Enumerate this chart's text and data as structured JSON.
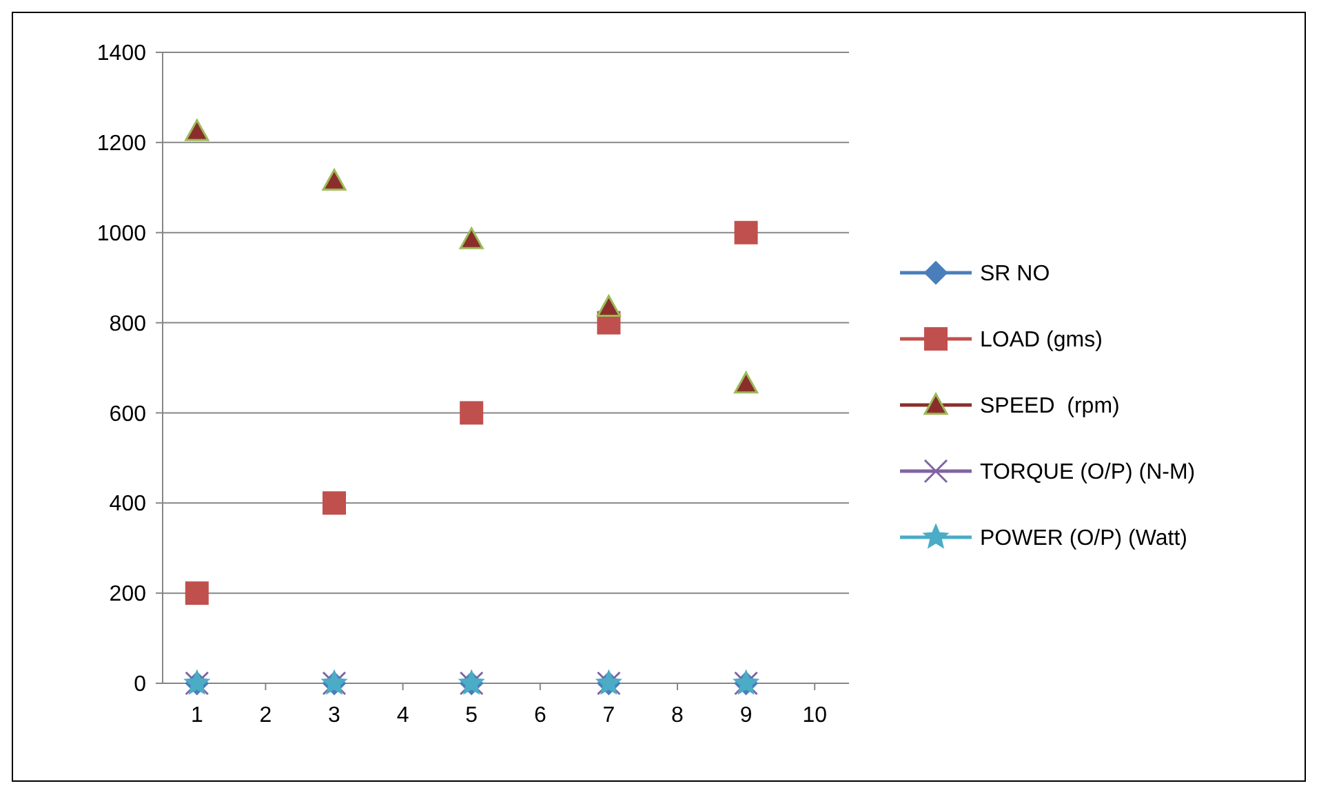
{
  "chart_data": {
    "type": "scatter",
    "x": [
      1,
      3,
      5,
      7,
      9
    ],
    "xlim": [
      0.5,
      10.5
    ],
    "xticks": [
      1,
      2,
      3,
      4,
      5,
      6,
      7,
      8,
      9,
      10
    ],
    "ylim": [
      0,
      1400
    ],
    "yticks": [
      0,
      200,
      400,
      600,
      800,
      1000,
      1200,
      1400
    ],
    "grid": "y",
    "legend": "right",
    "series": [
      {
        "name": "SR NO",
        "color": "#4a7ebb",
        "marker": "diamond",
        "values": [
          0,
          0,
          0,
          0,
          0
        ]
      },
      {
        "name": "LOAD (gms)",
        "color": "#c0504d",
        "marker": "square",
        "values": [
          200,
          400,
          600,
          800,
          1000
        ]
      },
      {
        "name": "SPEED  (rpm)",
        "color": "#8b2e2b",
        "marker": "triangle",
        "values": [
          1225,
          1115,
          985,
          835,
          665
        ]
      },
      {
        "name": "TORQUE (O/P) (N-M)",
        "color": "#8064a2",
        "marker": "cross",
        "values": [
          0,
          0,
          0,
          0,
          0
        ]
      },
      {
        "name": "POWER (O/P) (Watt)",
        "color": "#4bacc6",
        "marker": "star",
        "values": [
          0,
          0,
          0,
          0,
          0
        ]
      }
    ]
  }
}
